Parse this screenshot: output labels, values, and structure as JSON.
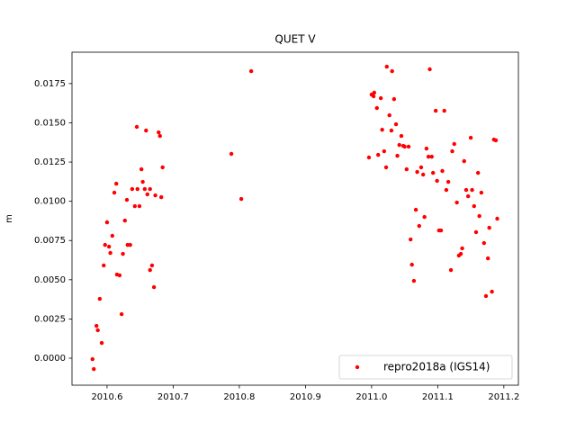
{
  "chart_data": {
    "type": "scatter",
    "title": "QUET V",
    "ylabel": "m",
    "xlim": [
      2010.547,
      2011.222
    ],
    "ylim": [
      -0.00172,
      0.0195
    ],
    "xticks": [
      2010.6,
      2010.7,
      2010.8,
      2010.9,
      {
        "value": 2011.0,
        "label": "2011.0"
      },
      2011.1,
      2011.2
    ],
    "yticks": [
      {
        "value": 0,
        "label": "0.0000"
      },
      {
        "value": 0.0025,
        "label": "0.0025"
      },
      {
        "value": 0.005,
        "label": "0.0050"
      },
      {
        "value": 0.0075,
        "label": "0.0075"
      },
      {
        "value": 0.01,
        "label": "0.0100"
      },
      {
        "value": 0.0125,
        "label": "0.0125"
      },
      {
        "value": 0.015,
        "label": "0.0150"
      },
      {
        "value": 0.0175,
        "label": "0.0175"
      }
    ],
    "legend": "lower right",
    "grid": false,
    "x": [
      2010.578,
      2010.58,
      2010.584,
      2010.586,
      2010.589,
      2010.592,
      2010.595,
      2010.597,
      2010.6,
      2010.603,
      2010.605,
      2010.608,
      2010.611,
      2010.614,
      2010.615,
      2010.619,
      2010.622,
      2010.624,
      2010.627,
      2010.63,
      2010.631,
      2010.635,
      2010.638,
      2010.642,
      2010.645,
      2010.646,
      2010.649,
      2010.652,
      2010.654,
      2010.657,
      2010.659,
      2010.661,
      2010.665,
      2010.665,
      2010.668,
      2010.671,
      2010.673,
      2010.678,
      2010.68,
      2010.682,
      2010.684,
      2010.788,
      2010.803,
      2010.818,
      2010.996,
      2011.0,
      2011.003,
      2011.004,
      2011.008,
      2011.01,
      2011.014,
      2011.016,
      2011.019,
      2011.022,
      2011.023,
      2011.027,
      2011.03,
      2011.031,
      2011.034,
      2011.037,
      2011.039,
      2011.042,
      2011.045,
      2011.048,
      2011.05,
      2011.053,
      2011.056,
      2011.059,
      2011.061,
      2011.064,
      2011.067,
      2011.069,
      2011.072,
      2011.075,
      2011.078,
      2011.08,
      2011.083,
      2011.086,
      2011.088,
      2011.091,
      2011.093,
      2011.097,
      2011.099,
      2011.102,
      2011.105,
      2011.107,
      2011.11,
      2011.113,
      2011.116,
      2011.12,
      2011.122,
      2011.125,
      2011.129,
      2011.132,
      2011.135,
      2011.137,
      2011.14,
      2011.143,
      2011.146,
      2011.15,
      2011.152,
      2011.155,
      2011.158,
      2011.161,
      2011.163,
      2011.166,
      2011.17,
      2011.173,
      2011.176,
      2011.178,
      2011.182,
      2011.185,
      2011.188,
      2011.19
    ],
    "series": [
      {
        "name": "repro2018a (IGS14)",
        "color": "#ff0000",
        "marker": "o",
        "values": [
          -6e-05,
          -0.00069,
          0.00206,
          0.00178,
          0.00378,
          0.00097,
          0.00591,
          0.00722,
          0.00866,
          0.00711,
          0.00671,
          0.0078,
          0.01055,
          0.01112,
          0.00533,
          0.00528,
          0.00281,
          0.00665,
          0.00877,
          0.01009,
          0.00722,
          0.00722,
          0.01078,
          0.00969,
          0.01474,
          0.01078,
          0.00969,
          0.01204,
          0.01124,
          0.01078,
          0.01451,
          0.01044,
          0.01078,
          0.00562,
          0.00591,
          0.00453,
          0.01038,
          0.01439,
          0.01416,
          0.01026,
          0.01216,
          0.01302,
          0.01015,
          0.01829,
          0.01279,
          0.0168,
          0.01669,
          0.01692,
          0.01594,
          0.01296,
          0.01657,
          0.01456,
          0.01319,
          0.01216,
          0.01858,
          0.01548,
          0.01451,
          0.01829,
          0.01651,
          0.01491,
          0.0129,
          0.01359,
          0.01416,
          0.01353,
          0.01348,
          0.01204,
          0.01348,
          0.00757,
          0.00596,
          0.00493,
          0.00946,
          0.01187,
          0.00843,
          0.01216,
          0.0117,
          0.009,
          0.01336,
          0.01284,
          0.01841,
          0.01284,
          0.01181,
          0.01577,
          0.0113,
          0.00814,
          0.00814,
          0.01193,
          0.01577,
          0.01072,
          0.01124,
          0.00562,
          0.01319,
          0.01365,
          0.00992,
          0.00654,
          0.00665,
          0.007,
          0.01256,
          0.01072,
          0.01032,
          0.01405,
          0.01072,
          0.00969,
          0.00803,
          0.01181,
          0.00906,
          0.01055,
          0.00734,
          0.00396,
          0.00636,
          0.00831,
          0.00424,
          0.01393,
          0.01388,
          0.00889
        ]
      }
    ]
  }
}
